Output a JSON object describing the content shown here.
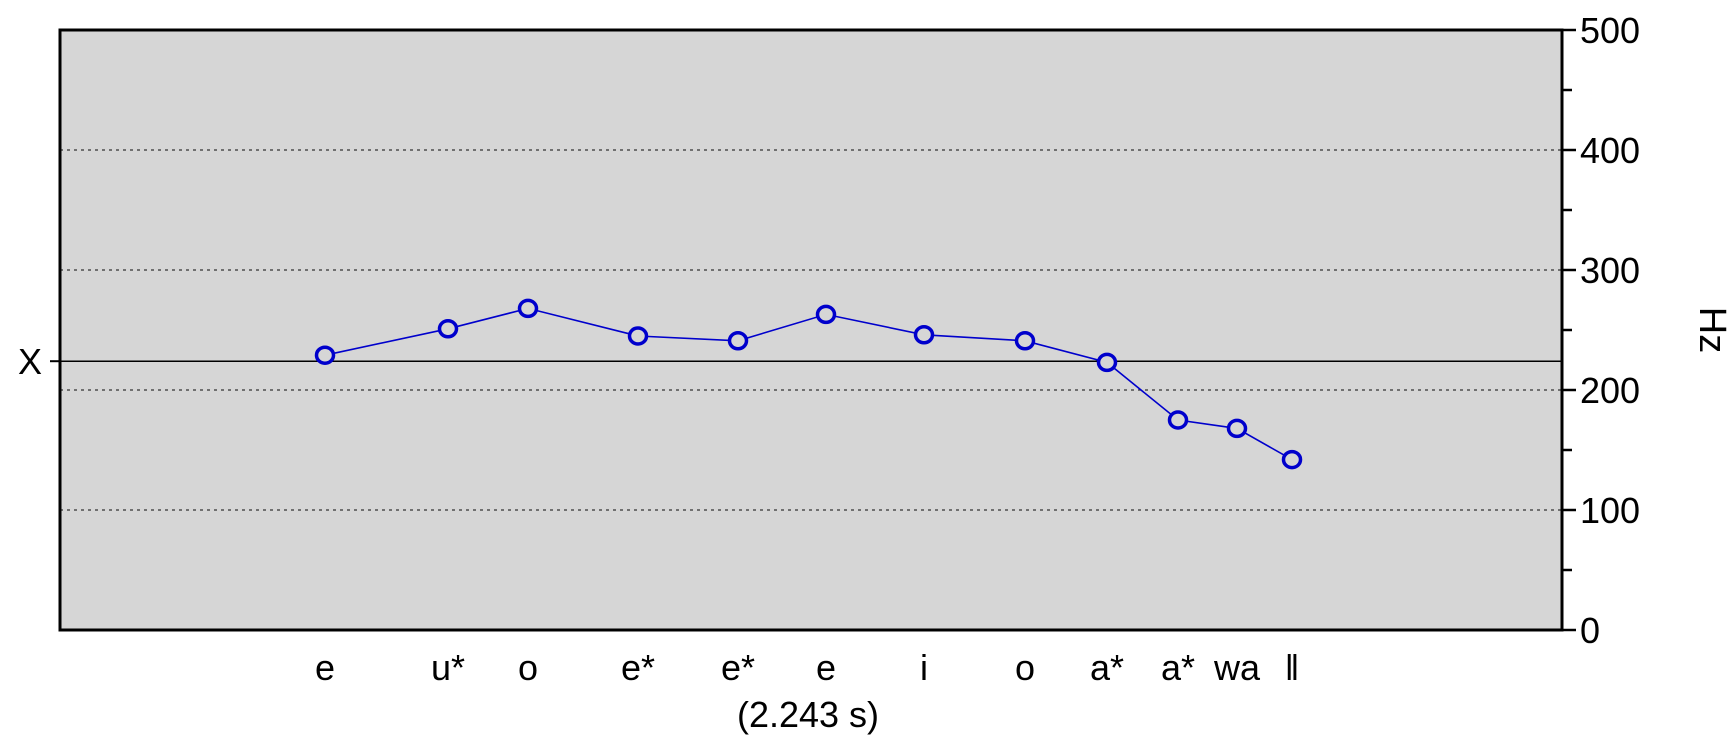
{
  "chart_data": {
    "type": "line",
    "y_axis": {
      "label": "Hz",
      "ticks": [
        "0",
        "100",
        "200",
        "300",
        "400",
        "500"
      ],
      "tick_values": [
        0,
        100,
        200,
        300,
        400,
        500
      ],
      "minor_tick_values": [
        50,
        150,
        250,
        350,
        450
      ],
      "ylim": [
        0,
        500
      ],
      "side": "right"
    },
    "gridlines": {
      "values": [
        100,
        200,
        300,
        400
      ],
      "style": "dotted"
    },
    "reference_line": {
      "label": "X",
      "value": 224
    },
    "categories": [
      "e",
      "u*",
      "o",
      "e*",
      "e*",
      "e",
      "i",
      "o",
      "a*",
      "a*",
      "wa",
      "ǁ"
    ],
    "series": [
      {
        "marker": "o",
        "color": "#0000cc",
        "values": [
          229,
          251,
          268,
          245,
          241,
          263,
          246,
          241,
          223,
          175,
          168,
          142
        ]
      }
    ],
    "duration_label": "(2.243 s)",
    "background_color": "#d6d6d6",
    "line_color": "#0000cc"
  }
}
